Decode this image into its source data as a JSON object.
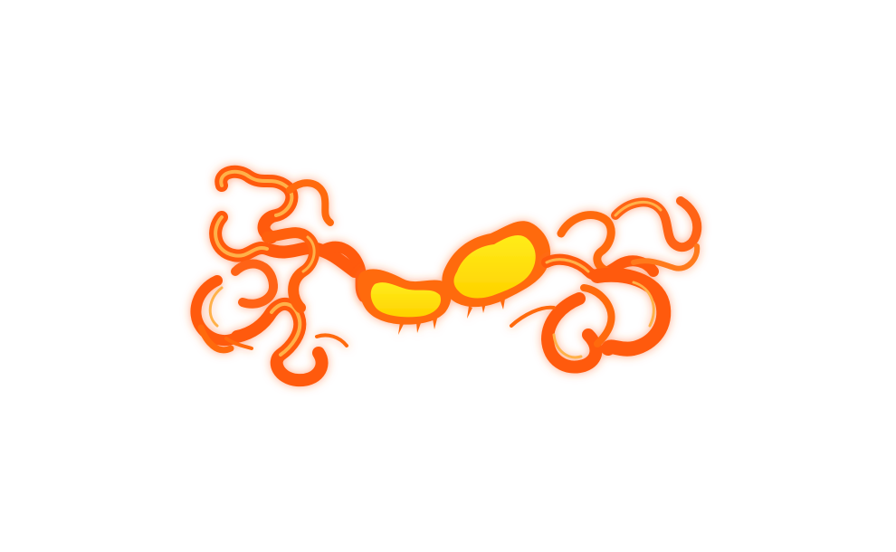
{
  "scene": {
    "name": "fire-splash-effect",
    "colors": {
      "background": "#ffffff",
      "outer_orange": "#ff5a0a",
      "mid_orange": "#ff7a12",
      "amber": "#ff9f1c",
      "yellow_core": "#ffe600",
      "highlight": "#fff3a0",
      "glow": "#ff6a2a"
    },
    "icons": [
      "fire-splash"
    ]
  }
}
